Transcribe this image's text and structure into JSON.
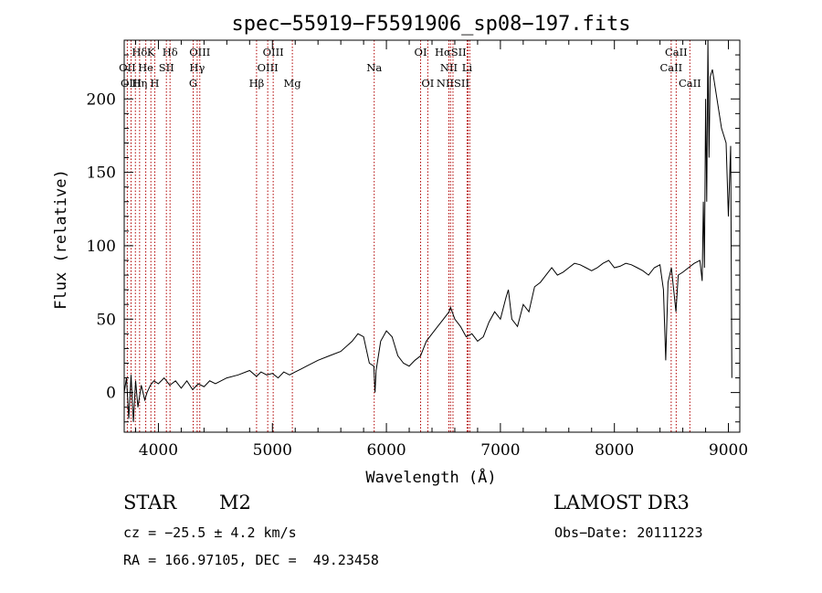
{
  "chart_data": {
    "type": "line",
    "title": "spec−55919−F5591906_sp08−197.fits",
    "xlabel": "Wavelength (Å)",
    "ylabel": "Flux (relative)",
    "xlim": [
      3700,
      9100
    ],
    "ylim": [
      -27,
      240
    ],
    "x_ticks": [
      4000,
      5000,
      6000,
      7000,
      8000,
      9000
    ],
    "x_tick_labels": [
      "4000",
      "5000",
      "6000",
      "7000",
      "8000",
      "9000"
    ],
    "y_ticks": [
      0,
      50,
      100,
      150,
      200
    ],
    "y_tick_labels": [
      "0",
      "50",
      "100",
      "150",
      "200"
    ],
    "series": [
      {
        "name": "spectrum",
        "x": [
          3700,
          3720,
          3740,
          3760,
          3780,
          3800,
          3820,
          3850,
          3880,
          3900,
          3930,
          3960,
          4000,
          4050,
          4100,
          4150,
          4200,
          4250,
          4300,
          4350,
          4400,
          4450,
          4500,
          4600,
          4700,
          4800,
          4860,
          4900,
          4950,
          5000,
          5050,
          5100,
          5150,
          5200,
          5250,
          5300,
          5400,
          5500,
          5600,
          5700,
          5750,
          5800,
          5850,
          5890,
          5900,
          5910,
          5950,
          6000,
          6050,
          6100,
          6150,
          6200,
          6250,
          6300,
          6350,
          6400,
          6450,
          6500,
          6550,
          6563,
          6600,
          6650,
          6700,
          6750,
          6800,
          6850,
          6900,
          6950,
          7000,
          7050,
          7070,
          7100,
          7150,
          7200,
          7250,
          7300,
          7350,
          7400,
          7450,
          7500,
          7550,
          7600,
          7650,
          7700,
          7750,
          7800,
          7850,
          7900,
          7950,
          8000,
          8050,
          8100,
          8150,
          8200,
          8250,
          8300,
          8350,
          8400,
          8430,
          8450,
          8470,
          8500,
          8540,
          8560,
          8600,
          8650,
          8700,
          8750,
          8770,
          8780,
          8790,
          8800,
          8810,
          8820,
          8830,
          8840,
          8860,
          8880,
          8900,
          8920,
          8940,
          8960,
          8980,
          9000,
          9020,
          9030
        ],
        "values": [
          0,
          10,
          -18,
          12,
          -20,
          8,
          -10,
          5,
          -5,
          0,
          5,
          8,
          6,
          10,
          5,
          8,
          3,
          8,
          2,
          6,
          4,
          8,
          6,
          10,
          12,
          15,
          11,
          14,
          12,
          13,
          10,
          14,
          12,
          14,
          16,
          18,
          22,
          25,
          28,
          35,
          40,
          38,
          20,
          18,
          0,
          15,
          35,
          42,
          38,
          25,
          20,
          18,
          22,
          25,
          35,
          40,
          45,
          50,
          55,
          58,
          50,
          45,
          38,
          40,
          35,
          38,
          48,
          55,
          50,
          65,
          70,
          50,
          45,
          60,
          55,
          72,
          75,
          80,
          85,
          80,
          82,
          85,
          88,
          87,
          85,
          83,
          85,
          88,
          90,
          85,
          86,
          88,
          87,
          85,
          83,
          80,
          85,
          87,
          70,
          22,
          75,
          85,
          55,
          80,
          82,
          85,
          88,
          90,
          76,
          130,
          85,
          200,
          130,
          240,
          160,
          215,
          220,
          210,
          200,
          190,
          180,
          175,
          170,
          120,
          168,
          10
        ]
      }
    ],
    "spectral_lines": [
      {
        "label": "Hδ",
        "x": 3835,
        "row": 1
      },
      {
        "label": "K",
        "x": 3934,
        "row": 1
      },
      {
        "label": "Hδ",
        "x": 4102,
        "row": 1
      },
      {
        "label": "OIII",
        "x": 4363,
        "row": 1
      },
      {
        "label": "OIII",
        "x": 5007,
        "row": 1
      },
      {
        "label": "OI",
        "x": 6300,
        "row": 1
      },
      {
        "label": "HαSII",
        "x": 6563,
        "row": 1
      },
      {
        "label": "CaII",
        "x": 8542,
        "row": 1
      },
      {
        "label": "OII",
        "x": 3727,
        "row": 2
      },
      {
        "label": "He",
        "x": 3889,
        "row": 2
      },
      {
        "label": "SII",
        "x": 4070,
        "row": 2
      },
      {
        "label": "Hγ",
        "x": 4340,
        "row": 2
      },
      {
        "label": "OIII",
        "x": 4959,
        "row": 2
      },
      {
        "label": "Na",
        "x": 5893,
        "row": 2
      },
      {
        "label": "NII",
        "x": 6548,
        "row": 2
      },
      {
        "label": "Li",
        "x": 6708,
        "row": 2
      },
      {
        "label": "CaII",
        "x": 8498,
        "row": 2
      },
      {
        "label": "OIII",
        "x": 3760,
        "row": 3
      },
      {
        "label": "Hη",
        "x": 3835,
        "row": 3
      },
      {
        "label": "H",
        "x": 3968,
        "row": 3
      },
      {
        "label": "G",
        "x": 4305,
        "row": 3
      },
      {
        "label": "Hβ",
        "x": 4861,
        "row": 3
      },
      {
        "label": "Mg",
        "x": 5175,
        "row": 3
      },
      {
        "label": "OI",
        "x": 6363,
        "row": 3
      },
      {
        "label": "NIISII",
        "x": 6584,
        "row": 3
      },
      {
        "label": "CaII",
        "x": 8662,
        "row": 3
      }
    ],
    "line_marker_positions": [
      3727,
      3760,
      3798,
      3835,
      3889,
      3934,
      3968,
      4070,
      4102,
      4305,
      4340,
      4363,
      4861,
      4959,
      5007,
      5175,
      5893,
      6300,
      6363,
      6548,
      6563,
      6584,
      6708,
      6716,
      6731,
      8498,
      8542,
      8662
    ]
  },
  "info": {
    "object_class": "STAR",
    "subclass": "M2",
    "survey": "LAMOST DR3",
    "velocity": "cz = −25.5 ± 4.2 km/s",
    "obs_date": "Obs−Date: 20111223",
    "coordinates": "RA = 166.97105, DEC =  49.23458"
  }
}
